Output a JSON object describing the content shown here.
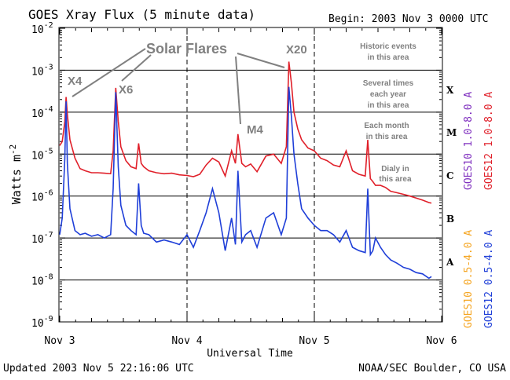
{
  "chart_data": {
    "type": "line",
    "title": "GOES Xray Flux (5 minute data)",
    "begin_label": "Begin:  2003 Nov 3 0000 UTC",
    "xlabel": "Universal Time",
    "ylabel": "Watts m",
    "ylabel_exponent": "-2",
    "x_ticks": [
      "Nov 3",
      "Nov 4",
      "Nov 5",
      "Nov 6"
    ],
    "xlim_days": [
      0,
      3
    ],
    "y_scale": "log",
    "ylim": [
      1e-09,
      0.01
    ],
    "y_tick_mantissa": "10",
    "y_tick_exponents": [
      "-2",
      "-3",
      "-4",
      "-5",
      "-6",
      "-7",
      "-8",
      "-9"
    ],
    "flare_classes": [
      "X",
      "M",
      "C",
      "B",
      "A"
    ],
    "annotations": {
      "solar_flares": "Solar Flares",
      "x4": "X4",
      "x6": "X6",
      "m4": "M4",
      "x20": "X20",
      "historic_1": "Historic events",
      "historic_2": "in this area",
      "several_1": "Several times",
      "several_2": "each year",
      "several_3": "in this area",
      "month_1": "Each month",
      "month_2": "in this area",
      "daily_1": "Dialy in",
      "daily_2": "this area"
    },
    "right_legend": [
      {
        "label": "GOES10 1.0-8.0 A",
        "color": "#7f2fbf"
      },
      {
        "label": "GOES12 1.0-8.0 A",
        "color": "#e0202a"
      },
      {
        "label": "GOES10 0.5-4.0 A",
        "color": "#f5a623"
      },
      {
        "label": "GOES12 0.5-4.0 A",
        "color": "#1f3fd8"
      }
    ],
    "series": [
      {
        "name": "GOES12 1.0-8.0 A",
        "color": "#e0202a",
        "x": [
          0.0,
          0.02,
          0.04,
          0.05,
          0.06,
          0.08,
          0.12,
          0.16,
          0.2,
          0.25,
          0.3,
          0.35,
          0.4,
          0.42,
          0.44,
          0.46,
          0.48,
          0.52,
          0.56,
          0.6,
          0.62,
          0.64,
          0.66,
          0.7,
          0.76,
          0.82,
          0.88,
          0.94,
          1.0,
          1.05,
          1.1,
          1.15,
          1.2,
          1.25,
          1.3,
          1.35,
          1.38,
          1.4,
          1.43,
          1.46,
          1.5,
          1.55,
          1.62,
          1.68,
          1.74,
          1.78,
          1.8,
          1.82,
          1.84,
          1.87,
          1.9,
          1.95,
          2.0,
          2.05,
          2.1,
          2.15,
          2.2,
          2.25,
          2.3,
          2.35,
          2.4,
          2.42,
          2.44,
          2.46,
          2.48,
          2.52,
          2.56,
          2.6,
          2.65,
          2.7,
          2.75,
          2.8,
          2.85,
          2.9,
          2.92
        ],
        "y": [
          1.6e-05,
          2e-05,
          6e-05,
          0.00023,
          9e-05,
          2.2e-05,
          8e-06,
          4.5e-06,
          4e-06,
          3.6e-06,
          3.6e-06,
          3.5e-06,
          3.4e-06,
          1.2e-05,
          0.00038,
          6e-05,
          1.5e-05,
          7e-06,
          5e-06,
          4.5e-06,
          1.8e-05,
          6e-06,
          5e-06,
          4e-06,
          3.6e-06,
          3.4e-06,
          3.5e-06,
          3.2e-06,
          3.1e-06,
          2.9e-06,
          3.3e-06,
          5.5e-06,
          8e-06,
          6.5e-06,
          3e-06,
          1.2e-05,
          6e-06,
          3e-05,
          6e-06,
          5e-06,
          5.8e-06,
          3.8e-06,
          9e-06,
          1e-05,
          6e-06,
          1.5e-05,
          0.0016,
          0.0005,
          0.0001,
          4e-05,
          2.2e-05,
          1.4e-05,
          1.2e-05,
          8e-06,
          7e-06,
          5.5e-06,
          5e-06,
          1.2e-05,
          4e-06,
          3.3e-06,
          3e-06,
          2.2e-05,
          2.6e-06,
          2.2e-06,
          1.8e-06,
          1.8e-06,
          1.6e-06,
          1.3e-06,
          1.2e-06,
          1.1e-06,
          1e-06,
          9e-07,
          8e-07,
          7e-07,
          6.8e-07
        ]
      },
      {
        "name": "GOES12 0.5-4.0 A",
        "color": "#1f3fd8",
        "x": [
          0.0,
          0.02,
          0.04,
          0.05,
          0.06,
          0.08,
          0.12,
          0.16,
          0.2,
          0.25,
          0.3,
          0.35,
          0.4,
          0.42,
          0.44,
          0.46,
          0.48,
          0.52,
          0.56,
          0.6,
          0.62,
          0.64,
          0.66,
          0.7,
          0.76,
          0.82,
          0.88,
          0.94,
          1.0,
          1.05,
          1.1,
          1.15,
          1.2,
          1.25,
          1.3,
          1.35,
          1.38,
          1.4,
          1.43,
          1.46,
          1.5,
          1.55,
          1.62,
          1.68,
          1.74,
          1.78,
          1.8,
          1.82,
          1.84,
          1.87,
          1.9,
          1.95,
          2.0,
          2.05,
          2.1,
          2.15,
          2.2,
          2.25,
          2.3,
          2.35,
          2.4,
          2.42,
          2.44,
          2.46,
          2.48,
          2.52,
          2.56,
          2.6,
          2.65,
          2.7,
          2.75,
          2.8,
          2.85,
          2.9,
          2.92
        ],
        "y": [
          1.2e-07,
          3e-07,
          8e-06,
          0.00018,
          6e-06,
          5e-07,
          1.5e-07,
          1.2e-07,
          1.3e-07,
          1.1e-07,
          1.2e-07,
          1e-07,
          1.2e-07,
          1.5e-06,
          0.0003,
          5e-06,
          6e-07,
          2e-07,
          1.5e-07,
          1.2e-07,
          2e-06,
          2e-07,
          1.3e-07,
          1.2e-07,
          8e-08,
          9e-08,
          8e-08,
          7e-08,
          1.2e-07,
          6e-08,
          1.5e-07,
          4e-07,
          1.5e-06,
          4e-07,
          5e-08,
          3e-07,
          7e-08,
          4e-06,
          8e-08,
          1.2e-07,
          1.5e-07,
          6e-08,
          3e-07,
          4e-07,
          1.2e-07,
          3e-07,
          0.0004,
          8e-05,
          1e-05,
          2e-06,
          5e-07,
          3e-07,
          2e-07,
          1.5e-07,
          1.5e-07,
          1.2e-07,
          8e-08,
          1.5e-07,
          6e-08,
          5e-08,
          4.5e-08,
          1.5e-06,
          4e-08,
          5e-08,
          1e-07,
          6e-08,
          4e-08,
          3e-08,
          2.5e-08,
          2e-08,
          1.8e-08,
          1.5e-08,
          1.4e-08,
          1.1e-08,
          1.2e-08
        ]
      }
    ]
  },
  "footer": {
    "updated": "Updated 2003 Nov  5 22:16:06 UTC",
    "source": "NOAA/SEC Boulder, CO USA"
  }
}
